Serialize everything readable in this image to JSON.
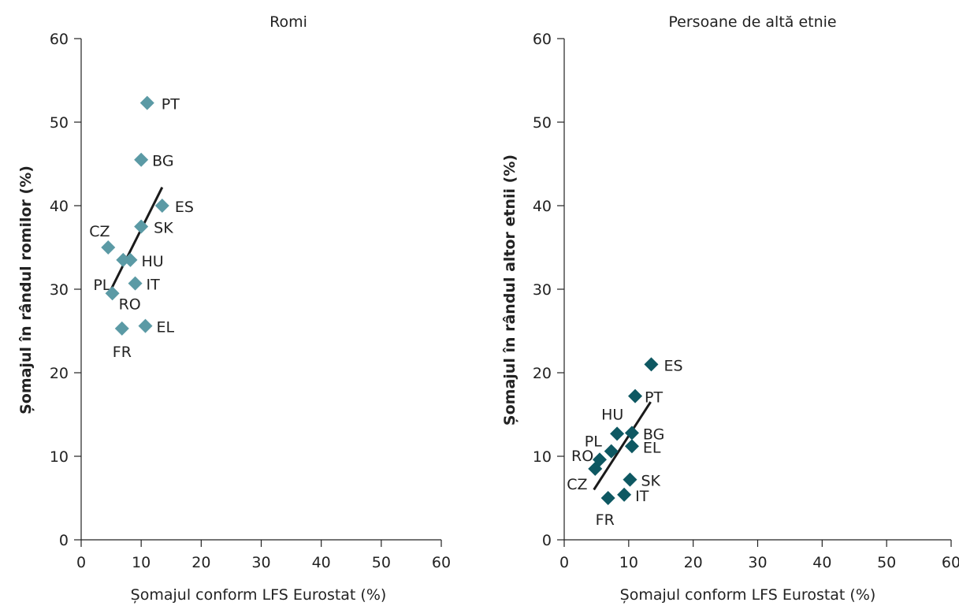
{
  "chart_data": [
    {
      "type": "scatter",
      "title": "Romi",
      "xlabel": "Șomajul conform LFS Eurostat (%)",
      "ylabel": "Șomajul în rândul romilor (%)",
      "xlim": [
        0,
        60
      ],
      "ylim": [
        0,
        60
      ],
      "xticks": [
        0,
        10,
        20,
        30,
        40,
        50,
        60
      ],
      "yticks": [
        0,
        10,
        20,
        30,
        40,
        50,
        60
      ],
      "grid": false,
      "marker": "diamond",
      "color": "#5b9aa5",
      "points": [
        {
          "label": "PT",
          "x": 11.0,
          "y": 52.3
        },
        {
          "label": "BG",
          "x": 10.0,
          "y": 45.5
        },
        {
          "label": "ES",
          "x": 13.5,
          "y": 40.0
        },
        {
          "label": "SK",
          "x": 10.0,
          "y": 37.5
        },
        {
          "label": "CZ",
          "x": 4.5,
          "y": 35.0
        },
        {
          "label": "PL",
          "x": 7.0,
          "y": 33.5
        },
        {
          "label": "HU",
          "x": 8.2,
          "y": 33.5
        },
        {
          "label": "IT",
          "x": 9.0,
          "y": 30.7
        },
        {
          "label": "RO",
          "x": 5.2,
          "y": 29.5
        },
        {
          "label": "FR",
          "x": 6.8,
          "y": 25.3
        },
        {
          "label": "EL",
          "x": 10.7,
          "y": 25.6
        }
      ],
      "trendline": {
        "x": [
          5.0,
          13.5
        ],
        "y": [
          30.0,
          42.2
        ]
      }
    },
    {
      "type": "scatter",
      "title": "Persoane de altă etnie",
      "xlabel": "Șomajul conform LFS Eurostat (%)",
      "ylabel": "Șomajul în rândul altor etnii (%)",
      "xlim": [
        0,
        60
      ],
      "ylim": [
        0,
        60
      ],
      "xticks": [
        0,
        10,
        20,
        30,
        40,
        50,
        60
      ],
      "yticks": [
        0,
        10,
        20,
        30,
        40,
        50,
        60
      ],
      "grid": false,
      "marker": "diamond",
      "color": "#0e5862",
      "points": [
        {
          "label": "ES",
          "x": 13.5,
          "y": 21.0
        },
        {
          "label": "PT",
          "x": 11.0,
          "y": 17.2
        },
        {
          "label": "HU",
          "x": 8.2,
          "y": 12.7
        },
        {
          "label": "BG",
          "x": 10.5,
          "y": 12.8
        },
        {
          "label": "EL",
          "x": 10.5,
          "y": 11.2
        },
        {
          "label": "PL",
          "x": 7.3,
          "y": 10.6
        },
        {
          "label": "RO",
          "x": 5.5,
          "y": 9.6
        },
        {
          "label": "CZ",
          "x": 4.8,
          "y": 8.5
        },
        {
          "label": "SK",
          "x": 10.2,
          "y": 7.2
        },
        {
          "label": "IT",
          "x": 9.3,
          "y": 5.4
        },
        {
          "label": "FR",
          "x": 6.8,
          "y": 5.0
        }
      ],
      "trendline": {
        "x": [
          4.6,
          13.4
        ],
        "y": [
          6.0,
          16.5
        ]
      }
    }
  ]
}
